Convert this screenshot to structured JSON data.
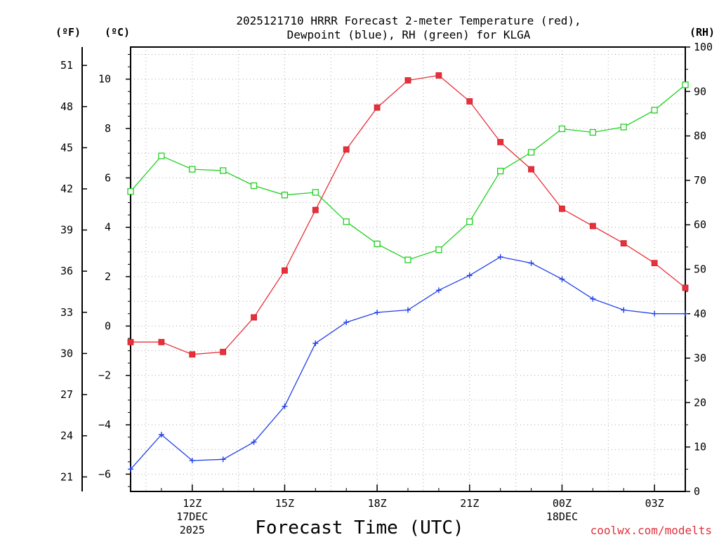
{
  "chart_data": {
    "type": "line",
    "title_line1": "2025121710 HRRR Forecast 2-meter Temperature (red),",
    "title_line2": "Dewpoint (blue), RH (green) for KLGA",
    "xlabel": "Forecast Time (UTC)",
    "credit": "coolwx.com/modelts",
    "unit_f": "(ºF)",
    "unit_c": "(ºC)",
    "unit_rh": "(RH)",
    "x_hours": [
      10,
      11,
      12,
      13,
      14,
      15,
      16,
      17,
      18,
      19,
      20,
      21,
      22,
      23,
      24,
      25,
      26,
      27,
      28
    ],
    "xlim": [
      10,
      28
    ],
    "ylim_c": [
      -6.7,
      11.3
    ],
    "ylim_rh": [
      0,
      100
    ],
    "series": [
      {
        "name": "Temperature",
        "unit": "°C",
        "color": "#e8303a",
        "values": [
          -0.65,
          -0.65,
          -1.15,
          -1.05,
          0.35,
          2.25,
          4.7,
          7.15,
          8.85,
          9.95,
          10.15,
          9.1,
          7.45,
          6.35,
          4.75,
          4.05,
          3.35,
          2.55,
          1.55
        ]
      },
      {
        "name": "Dewpoint",
        "unit": "°C",
        "color": "#2040e8",
        "values": [
          -5.8,
          -4.4,
          -5.45,
          -5.4,
          -4.7,
          -3.25,
          -0.7,
          0.15,
          0.55,
          0.65,
          1.45,
          2.05,
          2.8,
          2.55,
          1.9,
          1.1,
          0.65,
          0.5,
          0.5
        ]
      },
      {
        "name": "RH",
        "unit": "%",
        "color": "#20d020",
        "values": [
          67.5,
          75.5,
          72.5,
          72.2,
          68.8,
          66.7,
          67.3,
          60.7,
          55.7,
          52.1,
          54.4,
          60.7,
          72.1,
          76.3,
          81.6,
          80.8,
          82.0,
          85.8,
          91.5
        ]
      }
    ],
    "y_ticks_c": [
      "10",
      "8",
      "6",
      "4",
      "2",
      "0",
      "−2",
      "−4",
      "−6"
    ],
    "y_ticks_f": [
      "51",
      "48",
      "45",
      "42",
      "39",
      "36",
      "33",
      "30",
      "27",
      "24",
      "21"
    ],
    "y_ticks_rh": [
      "100",
      "90",
      "80",
      "70",
      "60",
      "50",
      "40",
      "30",
      "20",
      "10",
      "0"
    ],
    "x_ticks": [
      {
        "hour": 12,
        "lines": [
          "12Z",
          "17DEC",
          "2025"
        ]
      },
      {
        "hour": 15,
        "lines": [
          "15Z"
        ]
      },
      {
        "hour": 18,
        "lines": [
          "18Z"
        ]
      },
      {
        "hour": 21,
        "lines": [
          "21Z"
        ]
      },
      {
        "hour": 24,
        "lines": [
          "00Z",
          "18DEC"
        ]
      },
      {
        "hour": 27,
        "lines": [
          "03Z"
        ]
      }
    ]
  }
}
